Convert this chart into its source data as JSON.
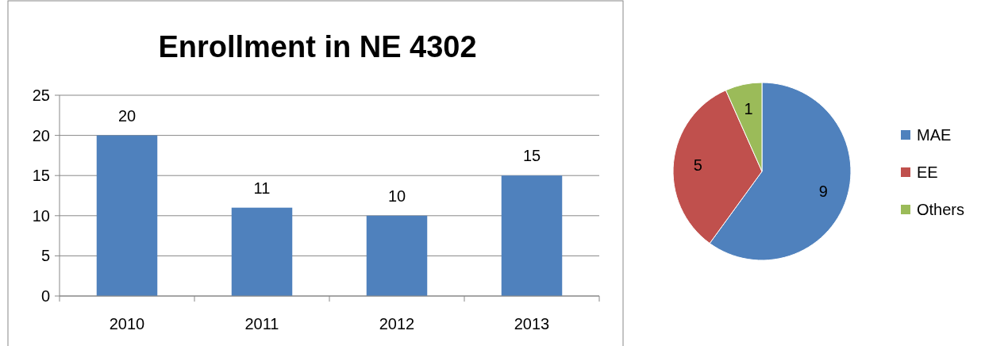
{
  "chart_data": [
    {
      "type": "bar",
      "title": "Enrollment in NE 4302",
      "categories": [
        "2010",
        "2011",
        "2012",
        "2013"
      ],
      "values": [
        20,
        11,
        10,
        15
      ],
      "color": "#4f81bd",
      "ylim": [
        0,
        25
      ],
      "yticks": [
        0,
        5,
        10,
        15,
        20,
        25
      ],
      "grid": "y",
      "data_labels": true
    },
    {
      "type": "pie",
      "categories": [
        "MAE",
        "EE",
        "Others"
      ],
      "values": [
        9,
        5,
        1
      ],
      "colors": [
        "#4f81bd",
        "#c0504d",
        "#9bbb59"
      ],
      "data_labels": true,
      "legend": "right"
    }
  ]
}
